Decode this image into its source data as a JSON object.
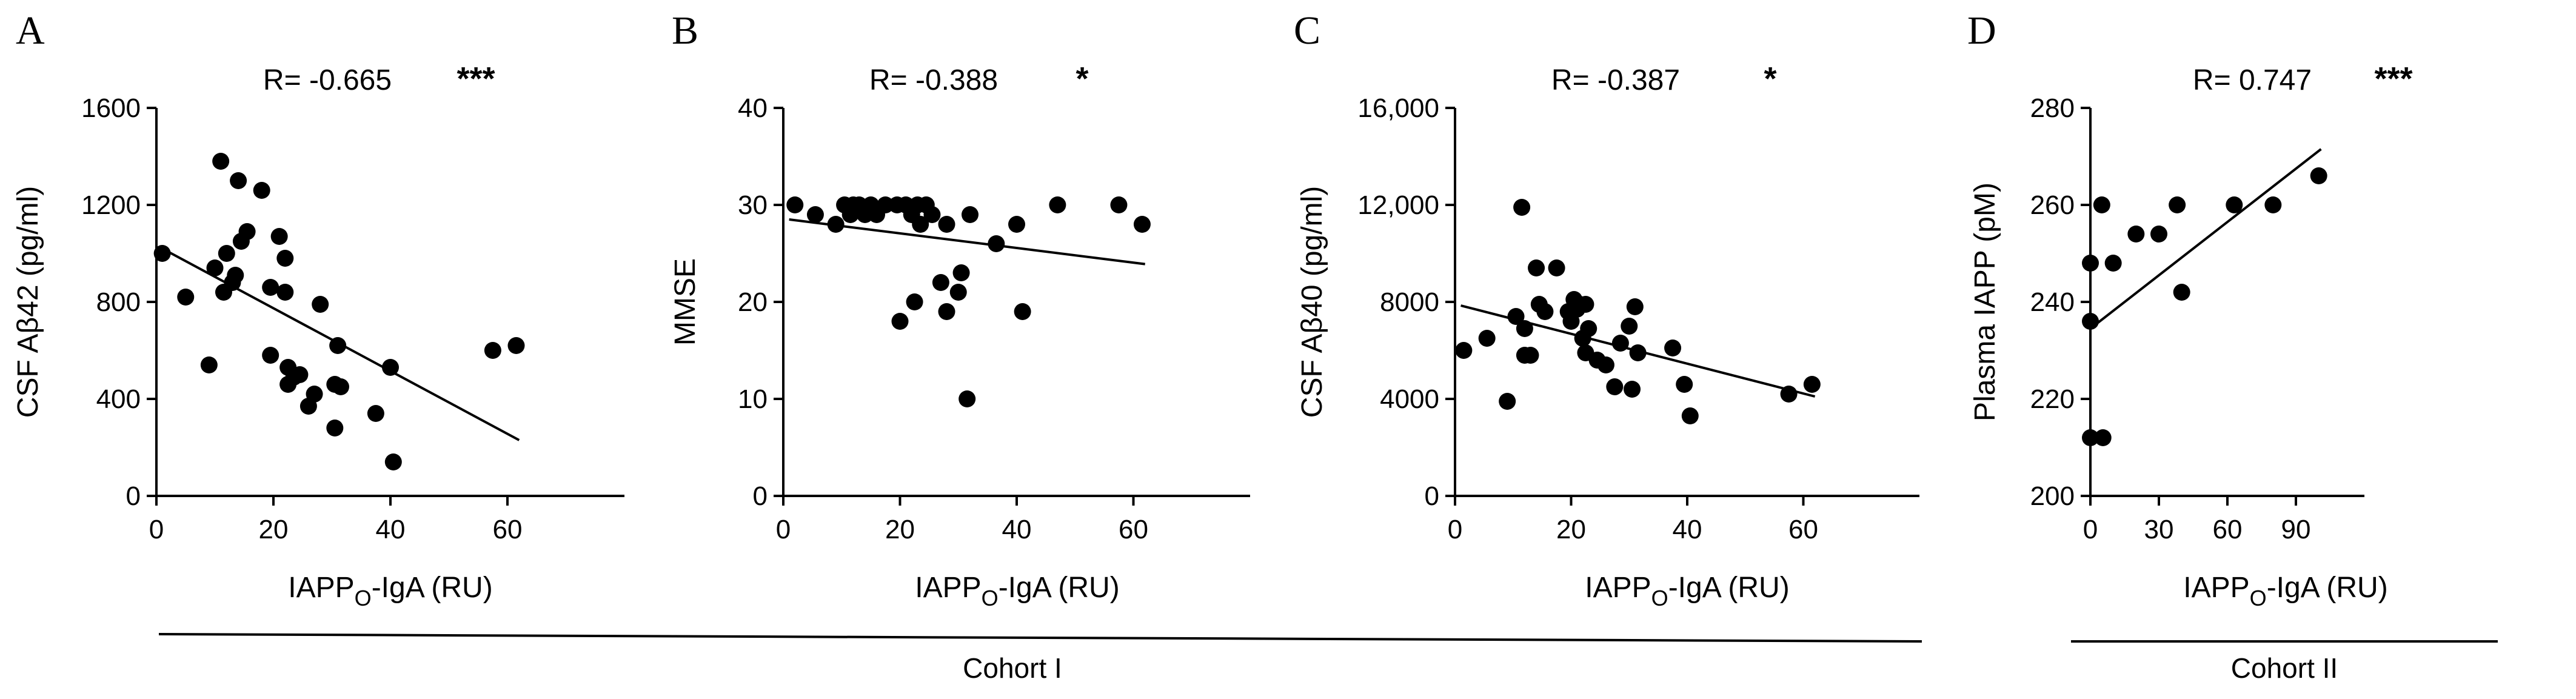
{
  "figure": {
    "cohorts": [
      {
        "label": "Cohort I"
      },
      {
        "label": "Cohort II"
      }
    ]
  },
  "chart_data": [
    {
      "panel": "A",
      "type": "scatter",
      "title": "",
      "xlabel": "IAPP",
      "xlabel_sub": "O",
      "xlabel_rest": "-IgA (RU)",
      "ylabel": "CSF Aβ42 (pg/ml)",
      "xlim": [
        0,
        80
      ],
      "ylim": [
        0,
        1600
      ],
      "xticks": [
        0,
        20,
        40,
        60
      ],
      "yticks": [
        0,
        400,
        800,
        1200,
        1600
      ],
      "ytick_labels": [
        "0",
        "400",
        "800",
        "1200",
        "1600"
      ],
      "r_label": "R= -0.665",
      "significance": "***",
      "fit": {
        "x": [
          1,
          62
        ],
        "y": [
          1020,
          230
        ]
      },
      "points": [
        [
          1,
          1000
        ],
        [
          5,
          820
        ],
        [
          9,
          540
        ],
        [
          10,
          940
        ],
        [
          11,
          1380
        ],
        [
          11.5,
          840
        ],
        [
          12,
          1000
        ],
        [
          13,
          880
        ],
        [
          13.5,
          910
        ],
        [
          14,
          1300
        ],
        [
          14.5,
          1050
        ],
        [
          15.5,
          1090
        ],
        [
          18,
          1260
        ],
        [
          19.5,
          860
        ],
        [
          19.5,
          580
        ],
        [
          21,
          1070
        ],
        [
          22,
          980
        ],
        [
          22,
          840
        ],
        [
          22.5,
          530
        ],
        [
          22.5,
          460
        ],
        [
          23.5,
          490
        ],
        [
          24.5,
          500
        ],
        [
          26,
          370
        ],
        [
          27,
          420
        ],
        [
          28,
          790
        ],
        [
          30.5,
          280
        ],
        [
          30.5,
          460
        ],
        [
          31,
          620
        ],
        [
          31.5,
          450
        ],
        [
          37.5,
          340
        ],
        [
          40,
          530
        ],
        [
          40.5,
          140
        ],
        [
          57.5,
          600
        ],
        [
          61.5,
          620
        ]
      ]
    },
    {
      "panel": "B",
      "type": "scatter",
      "title": "",
      "xlabel": "IAPP",
      "xlabel_sub": "O",
      "xlabel_rest": "-IgA (RU)",
      "ylabel": "MMSE",
      "xlim": [
        0,
        80
      ],
      "ylim": [
        0,
        40
      ],
      "xticks": [
        0,
        20,
        40,
        60
      ],
      "yticks": [
        0,
        10,
        20,
        30,
        40
      ],
      "ytick_labels": [
        "0",
        "10",
        "20",
        "30",
        "40"
      ],
      "r_label": "R= -0.388",
      "significance": "*",
      "fit": {
        "x": [
          1,
          62
        ],
        "y": [
          28.5,
          23.9
        ]
      },
      "points": [
        [
          2,
          30
        ],
        [
          5.5,
          29
        ],
        [
          9,
          28
        ],
        [
          10.5,
          30
        ],
        [
          11.5,
          29
        ],
        [
          12,
          30
        ],
        [
          13,
          30
        ],
        [
          14,
          29
        ],
        [
          15,
          30
        ],
        [
          16,
          29
        ],
        [
          17.5,
          30
        ],
        [
          19.5,
          30
        ],
        [
          20,
          18
        ],
        [
          21,
          30
        ],
        [
          22,
          29
        ],
        [
          22.5,
          20
        ],
        [
          23,
          30
        ],
        [
          23.5,
          28
        ],
        [
          24.5,
          30
        ],
        [
          25.5,
          29
        ],
        [
          27,
          22
        ],
        [
          28,
          28
        ],
        [
          28,
          19
        ],
        [
          30,
          21
        ],
        [
          30.5,
          23
        ],
        [
          31.5,
          10
        ],
        [
          32,
          29
        ],
        [
          36.5,
          26
        ],
        [
          40,
          28
        ],
        [
          41,
          19
        ],
        [
          47,
          30
        ],
        [
          57.5,
          30
        ],
        [
          61.5,
          28
        ]
      ]
    },
    {
      "panel": "C",
      "type": "scatter",
      "title": "",
      "xlabel": "IAPP",
      "xlabel_sub": "O",
      "xlabel_rest": "-IgA (RU)",
      "ylabel": "CSF Aβ40 (pg/ml)",
      "xlim": [
        0,
        80
      ],
      "ylim": [
        0,
        16000
      ],
      "xticks": [
        0,
        20,
        40,
        60
      ],
      "yticks": [
        0,
        4000,
        8000,
        12000,
        16000
      ],
      "ytick_labels": [
        "0",
        "4000",
        "8000",
        "12,000",
        "16,000"
      ],
      "r_label": "R= -0.387",
      "significance": "*",
      "fit": {
        "x": [
          1,
          62
        ],
        "y": [
          7850,
          4100
        ]
      },
      "points": [
        [
          1.5,
          6000
        ],
        [
          5.5,
          6500
        ],
        [
          9,
          3900
        ],
        [
          10.5,
          7400
        ],
        [
          11.5,
          11900
        ],
        [
          12,
          6900
        ],
        [
          12,
          5800
        ],
        [
          13,
          5800
        ],
        [
          14,
          9400
        ],
        [
          14.5,
          7900
        ],
        [
          15.5,
          7600
        ],
        [
          17.5,
          9400
        ],
        [
          19.5,
          7600
        ],
        [
          20,
          7200
        ],
        [
          20.5,
          8100
        ],
        [
          21,
          7700
        ],
        [
          21.5,
          7900
        ],
        [
          22,
          6500
        ],
        [
          22.5,
          7900
        ],
        [
          22.5,
          5900
        ],
        [
          23,
          6900
        ],
        [
          24.5,
          5600
        ],
        [
          26,
          5400
        ],
        [
          27.5,
          4500
        ],
        [
          28.5,
          6300
        ],
        [
          30,
          7000
        ],
        [
          30.5,
          4400
        ],
        [
          31,
          7800
        ],
        [
          31.5,
          5900
        ],
        [
          37.5,
          6100
        ],
        [
          39.5,
          4600
        ],
        [
          40.5,
          3300
        ],
        [
          57.5,
          4200
        ],
        [
          61.5,
          4600
        ]
      ]
    },
    {
      "panel": "D",
      "type": "scatter",
      "title": "",
      "xlabel": "IAPP",
      "xlabel_sub": "O",
      "xlabel_rest": "-IgA (RU)",
      "ylabel": "Plasma IAPP (pM)",
      "xlim": [
        0,
        120
      ],
      "ylim": [
        200,
        280
      ],
      "xticks": [
        0,
        30,
        60,
        90
      ],
      "yticks": [
        200,
        220,
        240,
        260,
        280
      ],
      "ytick_labels": [
        "200",
        "220",
        "240",
        "260",
        "280"
      ],
      "r_label": "R= 0.747",
      "significance": "***",
      "fit": {
        "x": [
          0,
          101
        ],
        "y": [
          234.5,
          271.5
        ]
      },
      "points": [
        [
          0,
          212
        ],
        [
          0,
          236
        ],
        [
          0,
          248
        ],
        [
          5,
          260
        ],
        [
          5.5,
          212
        ],
        [
          10,
          248
        ],
        [
          20,
          254
        ],
        [
          30,
          254
        ],
        [
          38,
          260
        ],
        [
          40,
          242
        ],
        [
          63,
          260
        ],
        [
          80,
          260
        ],
        [
          100,
          266
        ]
      ]
    }
  ]
}
